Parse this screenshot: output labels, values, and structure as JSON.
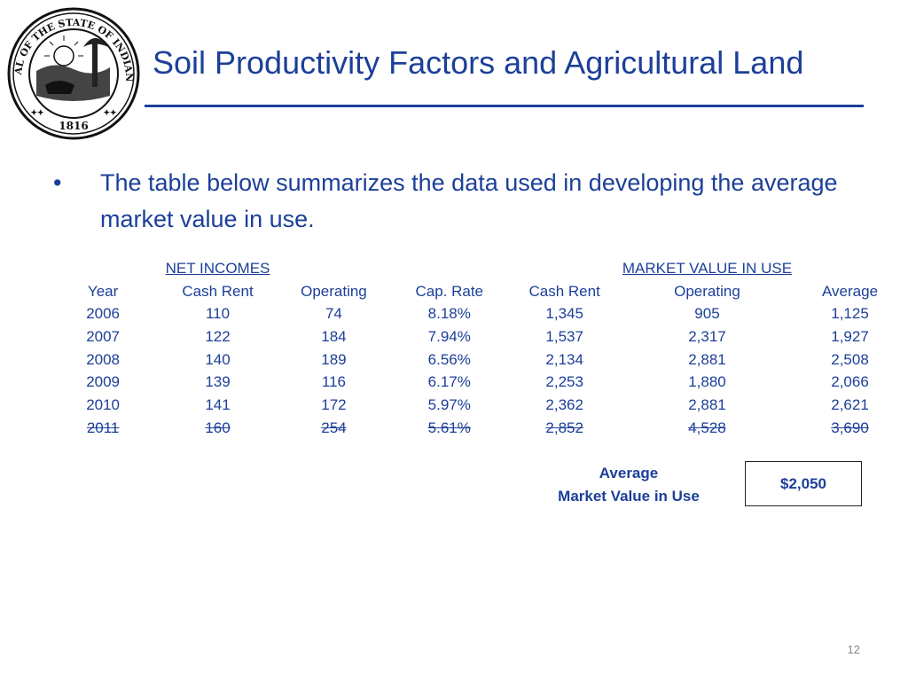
{
  "slide": {
    "title": "Soil Productivity Factors and Agricultural Land",
    "bullet": "The table below summarizes the data used in developing the average market value in use.",
    "bullet_symbol": "•",
    "page_number": "12"
  },
  "seal": {
    "icon": "state-seal-of-indiana",
    "text_top": "SEAL OF THE STATE OF INDIANA",
    "year": "1816"
  },
  "table": {
    "group_headers": {
      "net_incomes": "NET INCOMES",
      "market_value": "MARKET VALUE IN USE"
    },
    "columns": [
      "Year",
      "Cash Rent",
      "Operating",
      "Cap. Rate",
      "Cash Rent",
      "Operating",
      "Average"
    ],
    "rows": [
      [
        "2006",
        "110",
        "74",
        "8.18%",
        "1,345",
        "905",
        "1,125"
      ],
      [
        "2007",
        "122",
        "184",
        "7.94%",
        "1,537",
        "2,317",
        "1,927"
      ],
      [
        "2008",
        "140",
        "189",
        "6.56%",
        "2,134",
        "2,881",
        "2,508"
      ],
      [
        "2009",
        "139",
        "116",
        "6.17%",
        "2,253",
        "1,880",
        "2,066"
      ],
      [
        "2010",
        "141",
        "172",
        "5.97%",
        "2,362",
        "2,881",
        "2,621"
      ],
      [
        "2011",
        "160",
        "254",
        "5.61%",
        "2,852",
        "4,528",
        "3,690"
      ]
    ],
    "struck_row_index": 5
  },
  "summary": {
    "label_line1": "Average",
    "label_line2": "Market Value in Use",
    "value": "$2,050"
  }
}
